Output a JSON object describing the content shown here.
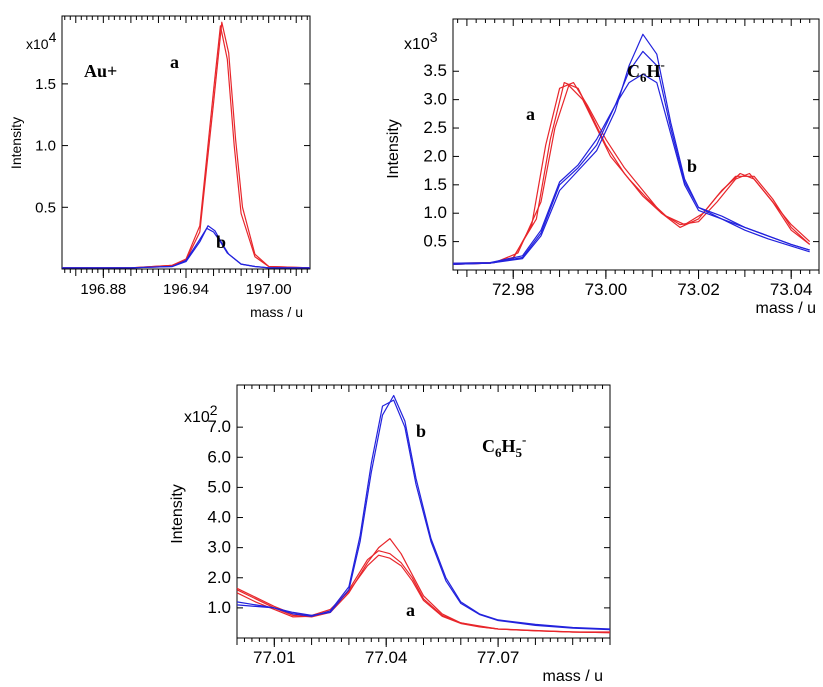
{
  "chart_data": [
    {
      "type": "line",
      "title": "",
      "species_label": "Au+",
      "xlabel": "mass / u",
      "ylabel": "Intensity",
      "y_multiplier": "x10",
      "y_multiplier_exp": "4",
      "xlim": [
        196.85,
        197.03
      ],
      "ylim": [
        0,
        2.05
      ],
      "xticks": [
        "196.88",
        "196.94",
        "197.00"
      ],
      "yticks": [
        "0.5",
        "1.0",
        "1.5"
      ],
      "annotations": [
        {
          "text": "a",
          "x": 196.957,
          "y": 1.88
        },
        {
          "text": "b",
          "x": 196.964,
          "y": 0.22
        }
      ],
      "series": [
        {
          "color": "#e8262b",
          "x": [
            196.85,
            196.9,
            196.93,
            196.94,
            196.95,
            196.96,
            196.965,
            196.97,
            196.975,
            196.98,
            196.99,
            197.0,
            197.03
          ],
          "values": [
            0.01,
            0.01,
            0.03,
            0.08,
            0.35,
            1.45,
            1.97,
            1.7,
            1.0,
            0.45,
            0.1,
            0.02,
            0.01
          ]
        },
        {
          "color": "#e8262b",
          "x": [
            196.85,
            196.9,
            196.93,
            196.94,
            196.95,
            196.96,
            196.966,
            196.971,
            196.976,
            196.981,
            196.99,
            197.0,
            197.03
          ],
          "values": [
            0.01,
            0.01,
            0.03,
            0.07,
            0.3,
            1.35,
            2.0,
            1.75,
            1.05,
            0.5,
            0.12,
            0.02,
            0.01
          ]
        },
        {
          "color": "#2222dd",
          "x": [
            196.85,
            196.9,
            196.93,
            196.94,
            196.95,
            196.955,
            196.96,
            196.965,
            196.97,
            196.98,
            196.99,
            197.0,
            197.03
          ],
          "values": [
            0.01,
            0.01,
            0.02,
            0.07,
            0.24,
            0.33,
            0.3,
            0.22,
            0.13,
            0.04,
            0.02,
            0.01,
            0.01
          ]
        },
        {
          "color": "#2222dd",
          "x": [
            196.85,
            196.9,
            196.93,
            196.94,
            196.95,
            196.956,
            196.961,
            196.966,
            196.971,
            196.98,
            196.99,
            197.0,
            197.03
          ],
          "values": [
            0.01,
            0.01,
            0.02,
            0.06,
            0.22,
            0.35,
            0.31,
            0.21,
            0.12,
            0.04,
            0.02,
            0.01,
            0.01
          ]
        }
      ]
    },
    {
      "type": "line",
      "title": "",
      "species_label": "C6H-",
      "species_base": "C",
      "species_sub": "6",
      "species_rest": "H",
      "species_sup": "-",
      "xlabel": "mass / u",
      "ylabel": "Intensity",
      "y_multiplier": "x10",
      "y_multiplier_exp": "3",
      "xlim": [
        72.967,
        73.046
      ],
      "ylim": [
        0,
        4.42
      ],
      "xticks": [
        "72.98",
        "73.00",
        "73.02",
        "73.04"
      ],
      "yticks": [
        "0.5",
        "1.0",
        "1.5",
        "2.0",
        "2.5",
        "3.0",
        "3.5"
      ],
      "annotations": [
        {
          "text": "a",
          "x": 72.9795,
          "y": 2.85
        },
        {
          "text": "b",
          "x": 73.0188,
          "y": 1.8
        }
      ],
      "series": [
        {
          "color": "#e8262b",
          "x": [
            72.967,
            72.975,
            72.98,
            72.984,
            72.987,
            72.99,
            72.993,
            72.996,
            73.0,
            73.004,
            73.008,
            73.012,
            73.016,
            73.02,
            73.024,
            73.028,
            73.031,
            73.035,
            73.04,
            73.044
          ],
          "values": [
            0.1,
            0.12,
            0.2,
            0.8,
            2.2,
            3.2,
            3.3,
            2.9,
            2.3,
            1.8,
            1.4,
            1.0,
            0.8,
            0.85,
            1.2,
            1.6,
            1.7,
            1.3,
            0.8,
            0.5
          ]
        },
        {
          "color": "#e8262b",
          "x": [
            72.967,
            72.975,
            72.98,
            72.985,
            72.988,
            72.991,
            72.994,
            72.997,
            73.0,
            73.004,
            73.008,
            73.012,
            73.016,
            73.02,
            73.024,
            73.028,
            73.032,
            73.036,
            73.04,
            73.044
          ],
          "values": [
            0.1,
            0.12,
            0.22,
            0.9,
            2.3,
            3.3,
            3.2,
            2.7,
            2.2,
            1.7,
            1.3,
            1.0,
            0.75,
            0.9,
            1.3,
            1.65,
            1.65,
            1.25,
            0.75,
            0.45
          ]
        },
        {
          "color": "#e8262b",
          "x": [
            72.967,
            72.976,
            72.981,
            72.986,
            72.989,
            72.992,
            72.995,
            72.998,
            73.001,
            73.005,
            73.009,
            73.013,
            73.017,
            73.021,
            73.025,
            73.029,
            73.032,
            73.036,
            73.04,
            73.044
          ],
          "values": [
            0.12,
            0.13,
            0.3,
            1.2,
            2.5,
            3.25,
            3.0,
            2.5,
            2.0,
            1.6,
            1.25,
            0.95,
            0.8,
            1.0,
            1.4,
            1.7,
            1.6,
            1.2,
            0.7,
            0.45
          ]
        },
        {
          "color": "#2222dd",
          "x": [
            72.967,
            72.975,
            72.982,
            72.986,
            72.99,
            72.994,
            72.998,
            73.002,
            73.005,
            73.008,
            73.011,
            73.014,
            73.017,
            73.02,
            73.025,
            73.03,
            73.035,
            73.04,
            73.044
          ],
          "values": [
            0.1,
            0.12,
            0.2,
            0.6,
            1.4,
            1.75,
            2.1,
            2.8,
            3.6,
            4.15,
            3.8,
            2.6,
            1.6,
            1.1,
            0.95,
            0.75,
            0.6,
            0.45,
            0.35
          ]
        },
        {
          "color": "#2222dd",
          "x": [
            72.967,
            72.975,
            72.982,
            72.986,
            72.99,
            72.994,
            72.998,
            73.002,
            73.005,
            73.008,
            73.011,
            73.014,
            73.017,
            73.02,
            73.025,
            73.03,
            73.035,
            73.04,
            73.044
          ],
          "values": [
            0.1,
            0.12,
            0.22,
            0.65,
            1.5,
            1.8,
            2.2,
            2.9,
            3.5,
            3.85,
            3.6,
            2.5,
            1.55,
            1.1,
            0.9,
            0.75,
            0.6,
            0.45,
            0.35
          ]
        },
        {
          "color": "#2222dd",
          "x": [
            72.967,
            72.975,
            72.982,
            72.986,
            72.99,
            72.994,
            72.998,
            73.002,
            73.005,
            73.008,
            73.011,
            73.014,
            73.017,
            73.02,
            73.025,
            73.03,
            73.035,
            73.04,
            73.044
          ],
          "values": [
            0.12,
            0.13,
            0.25,
            0.7,
            1.55,
            1.85,
            2.3,
            2.9,
            3.3,
            3.45,
            3.3,
            2.4,
            1.5,
            1.05,
            0.9,
            0.7,
            0.55,
            0.42,
            0.32
          ]
        }
      ]
    },
    {
      "type": "line",
      "title": "",
      "species_label": "C6H5-",
      "species_base": "C",
      "species_sub": "6",
      "species_rest": "H",
      "species_sub2": "5",
      "species_sup": "-",
      "xlabel": "mass / u",
      "ylabel": "Intensity",
      "y_multiplier": "x10",
      "y_multiplier_exp": "2",
      "xlim": [
        77.0,
        77.1
      ],
      "ylim": [
        0,
        8.4
      ],
      "xticks": [
        "77.01",
        "77.04",
        "77.07"
      ],
      "yticks": [
        "1.0",
        "2.0",
        "3.0",
        "4.0",
        "5.0",
        "6.0",
        "7.0"
      ],
      "annotations": [
        {
          "text": "b",
          "x": 77.0427,
          "y": 7.55
        },
        {
          "text": "a",
          "x": 77.0436,
          "y": 1.25
        }
      ],
      "series": [
        {
          "color": "#e8262b",
          "x": [
            77.0,
            77.005,
            77.01,
            77.015,
            77.02,
            77.025,
            77.03,
            77.035,
            77.038,
            77.041,
            77.044,
            77.047,
            77.05,
            77.055,
            77.06,
            77.065,
            77.07,
            77.08,
            77.09,
            77.1
          ],
          "values": [
            1.6,
            1.3,
            1.0,
            0.75,
            0.7,
            0.85,
            1.5,
            2.5,
            3.0,
            3.3,
            2.8,
            2.1,
            1.4,
            0.8,
            0.5,
            0.4,
            0.3,
            0.25,
            0.2,
            0.2
          ]
        },
        {
          "color": "#e8262b",
          "x": [
            77.0,
            77.005,
            77.01,
            77.015,
            77.02,
            77.025,
            77.03,
            77.035,
            77.038,
            77.041,
            77.044,
            77.047,
            77.05,
            77.055,
            77.06,
            77.065,
            77.07,
            77.08,
            77.09,
            77.1
          ],
          "values": [
            1.5,
            1.2,
            0.95,
            0.7,
            0.72,
            0.9,
            1.6,
            2.6,
            2.9,
            2.8,
            2.5,
            2.0,
            1.3,
            0.75,
            0.5,
            0.38,
            0.3,
            0.24,
            0.2,
            0.18
          ]
        },
        {
          "color": "#e8262b",
          "x": [
            77.0,
            77.005,
            77.01,
            77.015,
            77.02,
            77.025,
            77.03,
            77.035,
            77.038,
            77.041,
            77.044,
            77.047,
            77.05,
            77.055,
            77.06,
            77.065,
            77.07,
            77.08,
            77.09,
            77.1
          ],
          "values": [
            1.65,
            1.35,
            1.05,
            0.8,
            0.75,
            0.95,
            1.55,
            2.4,
            2.75,
            2.65,
            2.4,
            1.9,
            1.25,
            0.72,
            0.48,
            0.37,
            0.3,
            0.24,
            0.2,
            0.18
          ]
        },
        {
          "color": "#2222dd",
          "x": [
            77.0,
            77.005,
            77.01,
            77.015,
            77.02,
            77.025,
            77.03,
            77.033,
            77.036,
            77.039,
            77.042,
            77.045,
            77.048,
            77.052,
            77.056,
            77.06,
            77.065,
            77.07,
            77.08,
            77.09,
            77.1
          ],
          "values": [
            1.1,
            1.05,
            1.0,
            0.85,
            0.75,
            0.85,
            1.6,
            3.2,
            5.5,
            7.4,
            8.05,
            7.2,
            5.3,
            3.3,
            2.0,
            1.2,
            0.8,
            0.6,
            0.45,
            0.35,
            0.3
          ]
        },
        {
          "color": "#2222dd",
          "x": [
            77.0,
            77.005,
            77.01,
            77.015,
            77.02,
            77.025,
            77.03,
            77.033,
            77.036,
            77.039,
            77.042,
            77.045,
            77.048,
            77.052,
            77.056,
            77.06,
            77.065,
            77.07,
            77.08,
            77.09,
            77.1
          ],
          "values": [
            1.2,
            1.1,
            1.0,
            0.8,
            0.72,
            0.9,
            1.7,
            3.4,
            5.8,
            7.7,
            7.9,
            7.0,
            5.1,
            3.2,
            1.9,
            1.15,
            0.78,
            0.58,
            0.42,
            0.33,
            0.28
          ]
        }
      ]
    }
  ]
}
